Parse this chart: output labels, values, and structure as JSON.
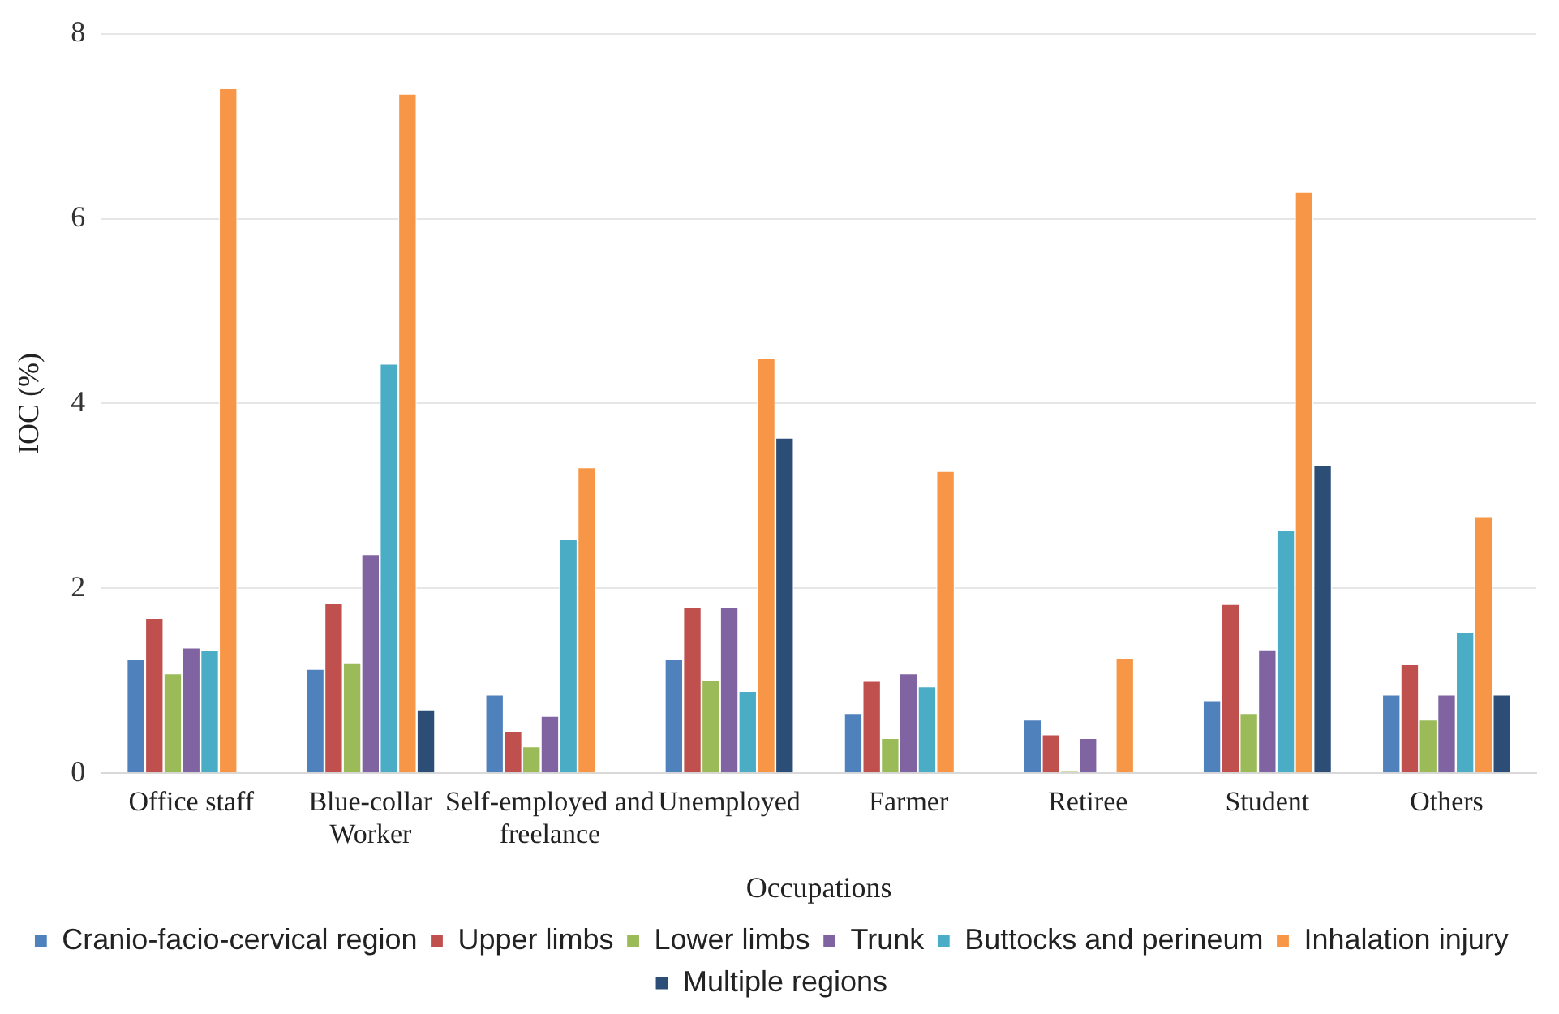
{
  "chart_data": {
    "type": "bar",
    "xlabel": "Occupations",
    "ylabel": "IOC (%)",
    "categories": [
      "Office staff",
      "Blue-collar Worker",
      "Self-employed and freelance",
      "Unemployed",
      "Farmer",
      "Retiree",
      "Student",
      "Others"
    ],
    "series": [
      {
        "name": "Cranio-facio-cervical region",
        "color": "#4f81bd",
        "values": [
          1.24,
          1.13,
          0.85,
          1.24,
          0.65,
          0.58,
          0.79,
          0.85
        ]
      },
      {
        "name": "Upper limbs",
        "color": "#c0504d",
        "values": [
          1.68,
          1.84,
          0.46,
          1.8,
          1.0,
          0.42,
          1.83,
          1.18
        ]
      },
      {
        "name": "Lower limbs",
        "color": "#9bbb59",
        "values": [
          1.08,
          1.2,
          0.29,
          1.01,
          0.38,
          0.02,
          0.65,
          0.58
        ]
      },
      {
        "name": "Trunk",
        "color": "#8064a2",
        "values": [
          1.36,
          2.37,
          0.62,
          1.8,
          1.08,
          0.38,
          1.34,
          0.85
        ]
      },
      {
        "name": "Buttocks and perineum",
        "color": "#4bacc6",
        "values": [
          1.33,
          4.43,
          2.53,
          0.89,
          0.94,
          null,
          2.63,
          1.53
        ]
      },
      {
        "name": "Inhalation injury",
        "color": "#f79646",
        "values": [
          7.41,
          7.35,
          3.31,
          4.49,
          3.27,
          1.25,
          6.29,
          2.78
        ]
      },
      {
        "name": "Multiple regions",
        "color": "#2c4d75",
        "values": [
          null,
          0.69,
          null,
          3.63,
          null,
          null,
          3.33,
          0.85
        ]
      }
    ],
    "ylim": [
      0,
      8
    ],
    "yticks": [
      0,
      2,
      4,
      6,
      8
    ],
    "grid": "y",
    "legend": "bottom"
  }
}
